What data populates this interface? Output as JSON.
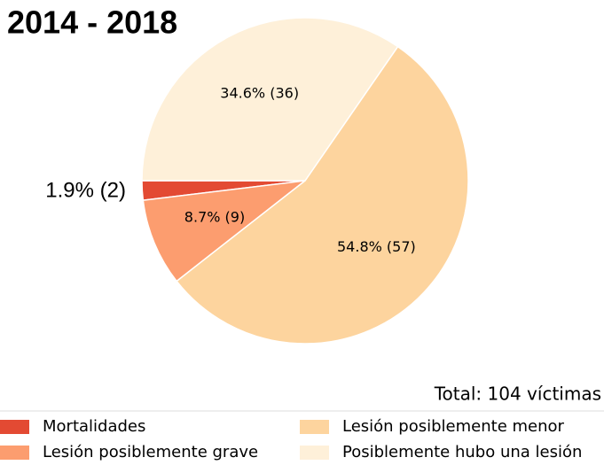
{
  "chart_data": {
    "type": "pie",
    "title": "2014 - 2018",
    "categories": [
      "Mortalidades",
      "Lesión posiblemente grave",
      "Lesión posiblemente menor",
      "Posiblemente hubo una lesión"
    ],
    "values": [
      2,
      9,
      57,
      36
    ],
    "value_labels": [
      "1.9% (2)",
      "8.7%  (9)",
      "54.8%  (57)",
      "34.6%  (36)"
    ],
    "colors": [
      "#e34a33",
      "#fc9d6f",
      "#fdd49e",
      "#fef0d9"
    ],
    "start_angle": 180,
    "annotation": "Total: 104 víctimas",
    "legend": "bottom"
  }
}
